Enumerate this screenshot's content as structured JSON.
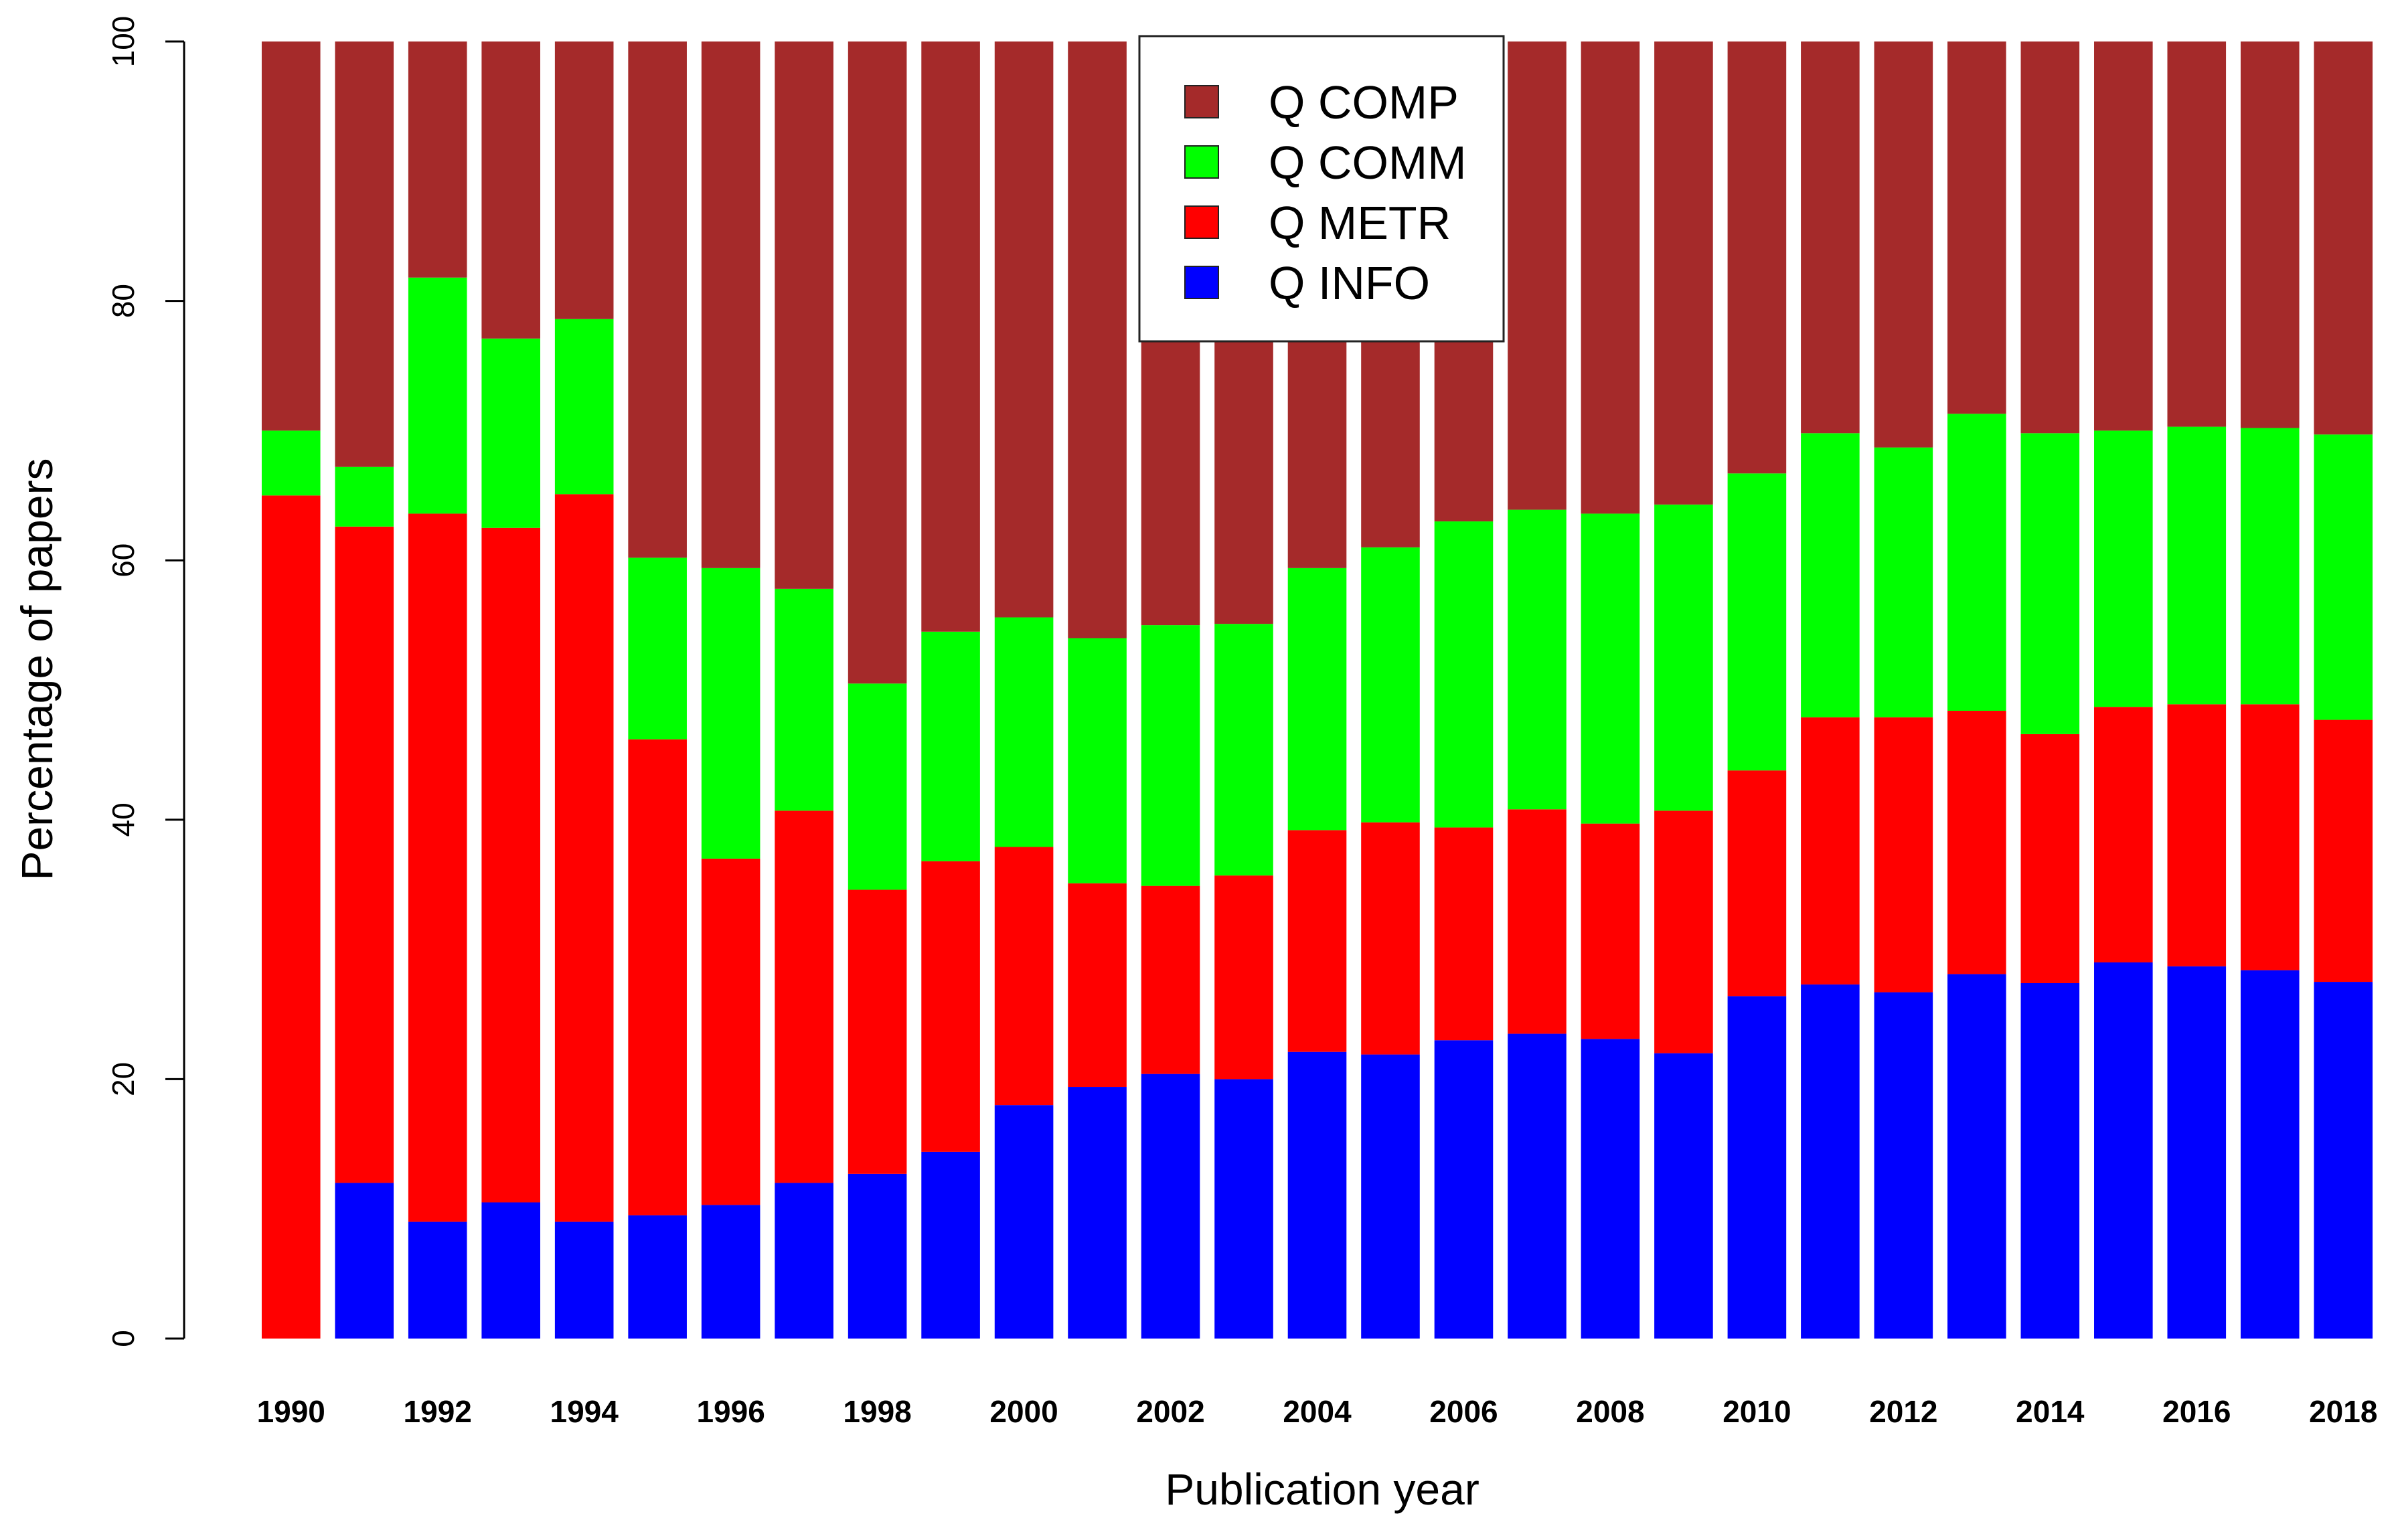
{
  "chart_data": {
    "type": "bar",
    "stacked": true,
    "title": "",
    "xlabel": "Publication year",
    "ylabel": "Percentage of papers",
    "ylim": [
      0,
      100
    ],
    "yticks": [
      0,
      20,
      40,
      60,
      80,
      100
    ],
    "grid": false,
    "legend_position": "top-center",
    "categories": [
      "1990",
      "1991",
      "1992",
      "1993",
      "1994",
      "1995",
      "1996",
      "1997",
      "1998",
      "1999",
      "2000",
      "2001",
      "2002",
      "2003",
      "2004",
      "2005",
      "2006",
      "2007",
      "2008",
      "2009",
      "2010",
      "2011",
      "2012",
      "2013",
      "2014",
      "2015",
      "2016",
      "2017",
      "2018"
    ],
    "x_tick_labels": [
      "1990",
      "1992",
      "1994",
      "1996",
      "1998",
      "2000",
      "2002",
      "2004",
      "2006",
      "2008",
      "2010",
      "2012",
      "2014",
      "2016",
      "2018"
    ],
    "series": [
      {
        "name": "Q INFO",
        "color": "#0000ff",
        "values": [
          0,
          12,
          9,
          10.5,
          9,
          9.5,
          10.3,
          12,
          12.7,
          14.4,
          18,
          19.4,
          20.4,
          20,
          22.1,
          21.9,
          23,
          23.5,
          23.1,
          22,
          26.4,
          27.3,
          26.7,
          28.1,
          27.4,
          29,
          28.7,
          28.4,
          27.5
        ]
      },
      {
        "name": "Q METR",
        "color": "#ff0000",
        "values": [
          65,
          50.6,
          54.6,
          52,
          56.1,
          36.7,
          26.7,
          28.7,
          21.9,
          22.4,
          19.9,
          15.7,
          14.5,
          15.7,
          17.1,
          17.9,
          16.4,
          17.3,
          16.6,
          18.7,
          17.4,
          20.6,
          21.2,
          20.3,
          19.2,
          19.7,
          20.2,
          20.5,
          20.2
        ]
      },
      {
        "name": "Q COMM",
        "color": "#00ff00",
        "values": [
          5,
          4.6,
          18.2,
          14.6,
          13.5,
          14,
          22.4,
          17.1,
          15.9,
          17.7,
          17.7,
          18.9,
          20.1,
          19.4,
          20.2,
          21.2,
          23.6,
          23.1,
          23.9,
          23.6,
          22.9,
          21.9,
          20.8,
          22.9,
          23.2,
          21.3,
          21.4,
          21.3,
          22
        ]
      },
      {
        "name": "Q COMP",
        "color": "#a52a2a",
        "values": [
          30,
          32.8,
          18.2,
          22.9,
          21.4,
          39.8,
          40.6,
          42.2,
          49.5,
          45.5,
          44.4,
          46,
          45,
          44.9,
          40.6,
          39,
          37,
          36.1,
          36.4,
          35.7,
          33.3,
          30.2,
          31.3,
          28.7,
          30.2,
          30,
          29.7,
          29.8,
          30.3
        ]
      }
    ],
    "legend_order": [
      "Q COMP",
      "Q COMM",
      "Q METR",
      "Q INFO"
    ]
  }
}
